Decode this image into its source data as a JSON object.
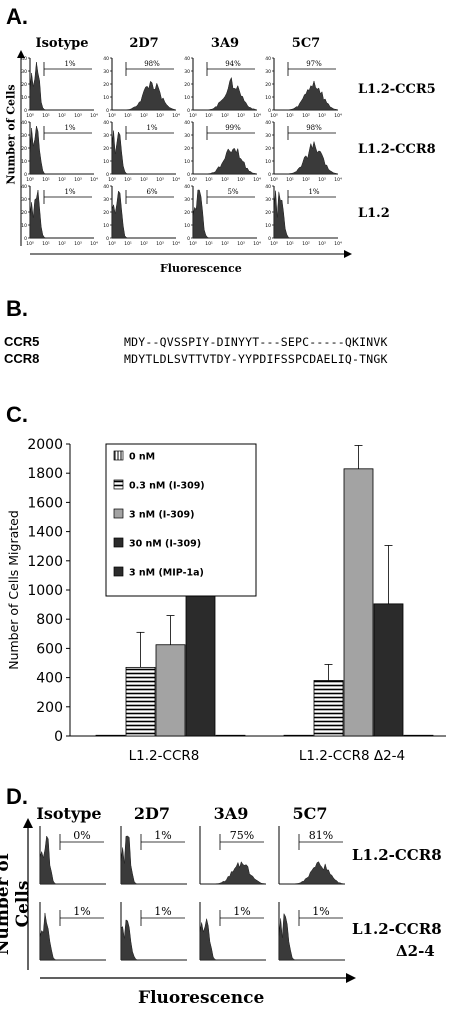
{
  "panelA": {
    "letter": "A.",
    "columns": [
      "Isotype",
      "2D7",
      "3A9",
      "5C7"
    ],
    "rows": [
      {
        "label": "L1.2-CCR5",
        "percents": [
          "1%",
          "98%",
          "94%",
          "97%"
        ],
        "shapes": [
          "neg",
          "pos",
          "pos",
          "pos"
        ]
      },
      {
        "label": "L1.2-CCR8",
        "percents": [
          "1%",
          "1%",
          "99%",
          "98%"
        ],
        "shapes": [
          "neg",
          "neg",
          "pos",
          "pos"
        ]
      },
      {
        "label": "L1.2",
        "percents": [
          "1%",
          "6%",
          "5%",
          "1%"
        ],
        "shapes": [
          "neg",
          "neg",
          "neg",
          "neg"
        ]
      }
    ],
    "ylabel": "Number of Cells",
    "xlabel": "Fluorescence",
    "yticks": [
      "0",
      "10",
      "20",
      "30",
      "40"
    ],
    "xticks": [
      "10⁰",
      "10¹",
      "10²",
      "10³",
      "10⁴"
    ]
  },
  "panelB": {
    "letter": "B.",
    "sequences": [
      {
        "name": "CCR5",
        "seq": "MDY--QVSSPIY-DINYYT---SEPC-----QKINVK"
      },
      {
        "name": "CCR8",
        "seq": "MDYTLDLSVTTVTDY-YYPDIFSSPCDAELIQ-TNGK"
      }
    ]
  },
  "panelC": {
    "letter": "C.",
    "chart_data": {
      "type": "bar",
      "ylabel": "Number of Cells Migrated",
      "ylim": [
        0,
        2000
      ],
      "yticks": [
        0,
        200,
        400,
        600,
        800,
        1000,
        1200,
        1400,
        1600,
        1800,
        2000
      ],
      "categories": [
        "L1.2-CCR8",
        "L1.2-CCR8  Δ2-4"
      ],
      "legend_position": "top-left",
      "series": [
        {
          "name": "0 nM",
          "values": [
            5,
            5
          ],
          "errors": [
            0,
            0
          ],
          "pattern": "vstripe",
          "color": "#ffffff"
        },
        {
          "name": "0.3 nM (I-309)",
          "values": [
            470,
            380
          ],
          "errors": [
            240,
            110
          ],
          "pattern": "hstripe",
          "color": "#ffffff"
        },
        {
          "name": "3 nM (I-309)",
          "values": [
            625,
            1830
          ],
          "errors": [
            200,
            160
          ],
          "pattern": "solid",
          "color": "#a3a3a3"
        },
        {
          "name": "30 nM (I-309)",
          "values": [
            1175,
            905
          ],
          "errors": [
            40,
            400
          ],
          "pattern": "solid",
          "color": "#2b2b2b"
        },
        {
          "name": "3 nM (MIP-1a)",
          "values": [
            5,
            5
          ],
          "errors": [
            0,
            0
          ],
          "pattern": "solid",
          "color": "#2b2b2b"
        }
      ]
    }
  },
  "panelD": {
    "letter": "D.",
    "columns": [
      "Isotype",
      "2D7",
      "3A9",
      "5C7"
    ],
    "rows": [
      {
        "label": "L1.2-CCR8",
        "percents": [
          "0%",
          "1%",
          "75%",
          "81%"
        ],
        "shapes": [
          "neg",
          "neg",
          "pos",
          "pos"
        ]
      },
      {
        "label": "L1.2-CCR8",
        "label2": "Δ2-4",
        "percents": [
          "1%",
          "1%",
          "1%",
          "1%"
        ],
        "shapes": [
          "neg",
          "neg",
          "neg",
          "neg"
        ]
      }
    ],
    "ylabel": "Number of Cells",
    "xlabel": "Fluorescence"
  }
}
